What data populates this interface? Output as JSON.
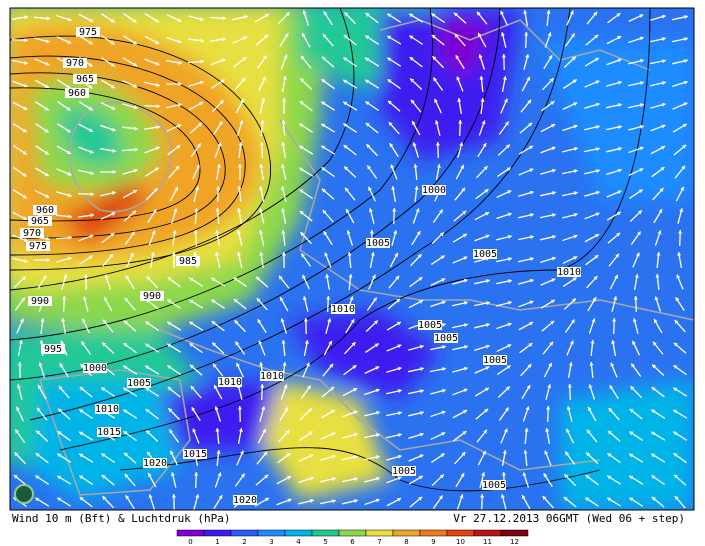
{
  "map": {
    "isobar_labels": [
      "975",
      "970",
      "965",
      "960",
      "960",
      "965",
      "970",
      "975",
      "985",
      "990",
      "990",
      "995",
      "1000",
      "1005",
      "1010",
      "1015",
      "1020",
      "1015",
      "1010",
      "1010",
      "1010",
      "1005",
      "1000",
      "1005",
      "1010",
      "1005",
      "1005",
      "1005",
      "1005",
      "1005",
      "1020"
    ],
    "caption_left": "Wind  10 m (Bft) & Luchtdruk (hPa)",
    "caption_right": "Vr 27.12.2013 06GMT (Wed 06 + step)",
    "legend": {
      "ticks": [
        0,
        1,
        2,
        3,
        4,
        5,
        6,
        7,
        8,
        9,
        10,
        11,
        12
      ],
      "colors": [
        "#8000d0",
        "#3c1ef0",
        "#2a5cf8",
        "#1e8cff",
        "#00b4e8",
        "#20c896",
        "#8cd84c",
        "#e8e040",
        "#f0a428",
        "#f07a18",
        "#e04410",
        "#b41414",
        "#7a0014"
      ]
    }
  }
}
